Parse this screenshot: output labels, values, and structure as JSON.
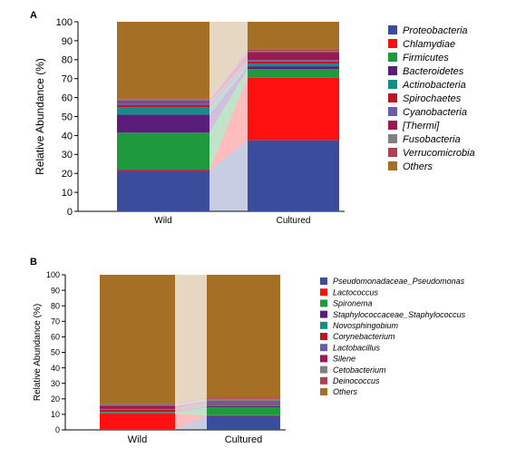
{
  "chart_data": [
    {
      "type": "bar",
      "panel_label": "A",
      "stacked": true,
      "categories": [
        "Wild",
        "Cultured"
      ],
      "ylabel": "Relative Abundance (%)",
      "xlabel": "",
      "ylim": [
        0,
        100
      ],
      "yticks": [
        0,
        10,
        20,
        30,
        40,
        50,
        60,
        70,
        80,
        90,
        100
      ],
      "legend_position": "right",
      "legend_italic": true,
      "series": [
        {
          "name": "Proteobacteria",
          "color": "#3a4c9c",
          "values": [
            21.5,
            37.5
          ]
        },
        {
          "name": "Chlamydiae",
          "color": "#ff1010",
          "values": [
            0.5,
            33.0
          ]
        },
        {
          "name": "Firmicutes",
          "color": "#1e9a3c",
          "values": [
            19.5,
            4.5
          ]
        },
        {
          "name": "Bacteroidetes",
          "color": "#5a1d7c",
          "values": [
            9.5,
            1.5
          ]
        },
        {
          "name": "Actinobacteria",
          "color": "#1b8a8a",
          "values": [
            4.0,
            1.5
          ]
        },
        {
          "name": "Spirochaetes",
          "color": "#c0141e",
          "values": [
            1.0,
            1.0
          ]
        },
        {
          "name": "Cyanobacteria",
          "color": "#6a5aa8",
          "values": [
            1.5,
            0.8
          ]
        },
        {
          "name": "[Thermi]",
          "color": "#9c1850",
          "values": [
            0.8,
            4.2
          ]
        },
        {
          "name": "Fusobacteria",
          "color": "#808080",
          "values": [
            0.7,
            0.5
          ]
        },
        {
          "name": "Verrucomicrobia",
          "color": "#b04050",
          "values": [
            0.5,
            1.0
          ]
        },
        {
          "name": "Others",
          "color": "#a56f26",
          "values": [
            40.5,
            14.5
          ]
        }
      ]
    },
    {
      "type": "bar",
      "panel_label": "B",
      "stacked": true,
      "categories": [
        "Wild",
        "Cultured"
      ],
      "ylabel": "Relative Abundance (%)",
      "xlabel": "",
      "ylim": [
        0,
        100
      ],
      "yticks": [
        0,
        10,
        20,
        30,
        40,
        50,
        60,
        70,
        80,
        90,
        100
      ],
      "legend_position": "right",
      "legend_italic": true,
      "series": [
        {
          "name": "Pseudomonadaceae_Pseudomonas",
          "color": "#3a4c9c",
          "values": [
            0.5,
            9.0
          ]
        },
        {
          "name": "Lactococcus",
          "color": "#ff1010",
          "values": [
            10.0,
            0.5
          ]
        },
        {
          "name": "Spironema",
          "color": "#1e9a3c",
          "values": [
            0.5,
            5.0
          ]
        },
        {
          "name": "Staphylococcaceae_Staphylococcus",
          "color": "#5a1d7c",
          "values": [
            0.3,
            0.8
          ]
        },
        {
          "name": "Novosphingobium",
          "color": "#1b8a8a",
          "values": [
            0.3,
            1.2
          ]
        },
        {
          "name": "Corynebacterium",
          "color": "#c0141e",
          "values": [
            1.4,
            0.5
          ]
        },
        {
          "name": "Lactobacillus",
          "color": "#6a5aa8",
          "values": [
            0.5,
            0.8
          ]
        },
        {
          "name": "Silene",
          "color": "#9c1850",
          "values": [
            2.0,
            0.7
          ]
        },
        {
          "name": "Cetobacterium",
          "color": "#808080",
          "values": [
            1.0,
            1.5
          ]
        },
        {
          "name": "Deinococcus",
          "color": "#b04050",
          "values": [
            0.5,
            1.0
          ]
        },
        {
          "name": "Others",
          "color": "#a56f26",
          "values": [
            83.0,
            79.0
          ]
        }
      ]
    }
  ]
}
